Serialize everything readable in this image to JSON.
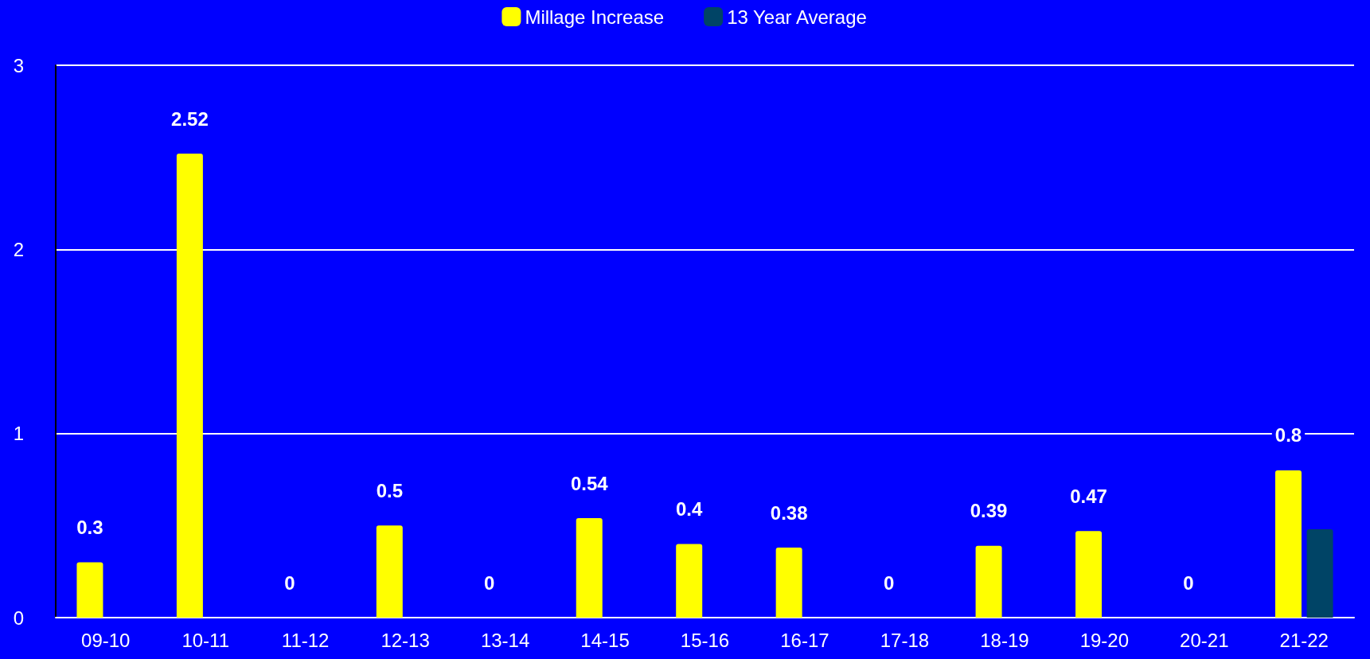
{
  "chart_data": {
    "type": "bar",
    "categories": [
      "09-10",
      "10-11",
      "11-12",
      "12-13",
      "13-14",
      "14-15",
      "15-16",
      "16-17",
      "17-18",
      "18-19",
      "19-20",
      "20-21",
      "21-22"
    ],
    "series": [
      {
        "name": "Millage Increase",
        "color": "#ffff00",
        "values": [
          0.3,
          2.52,
          0,
          0.5,
          0,
          0.54,
          0.4,
          0.38,
          0,
          0.39,
          0.47,
          0,
          0.8
        ],
        "value_labels": [
          "0.3",
          "2.52",
          "0",
          "0.5",
          "0",
          "0.54",
          "0.4",
          "0.38",
          "0",
          "0.39",
          "0.47",
          "0",
          "0.8"
        ]
      },
      {
        "name": "13 Year Average",
        "color": "#004466",
        "values": [
          null,
          null,
          null,
          null,
          null,
          null,
          null,
          null,
          null,
          null,
          null,
          null,
          0.48
        ]
      }
    ],
    "ylim": [
      0,
      3
    ],
    "yticks": [
      0,
      1,
      2,
      3
    ],
    "grid": "y",
    "legend": "top"
  }
}
